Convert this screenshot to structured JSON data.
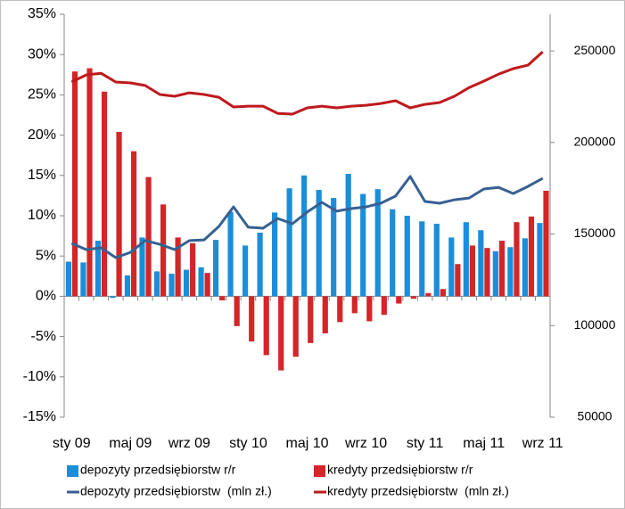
{
  "chart_data": {
    "type": "bar-line",
    "categories": [
      "sty 09",
      null,
      null,
      null,
      "maj 09",
      null,
      null,
      null,
      "wrz 09",
      null,
      null,
      null,
      "sty 10",
      null,
      null,
      null,
      "maj 10",
      null,
      null,
      null,
      "wrz 10",
      null,
      null,
      null,
      "sty 11",
      null,
      null,
      null,
      "maj 11",
      null,
      null,
      null,
      "wrz 11"
    ],
    "ylim": [
      -15,
      35
    ],
    "yticks": [
      {
        "value": -15,
        "label": "-15%"
      },
      {
        "value": -10,
        "label": "-10%"
      },
      {
        "value": -5,
        "label": "-5%"
      },
      {
        "value": 0,
        "label": "0%"
      },
      {
        "value": 5,
        "label": "5%"
      },
      {
        "value": 10,
        "label": "10%"
      },
      {
        "value": 15,
        "label": "15%"
      },
      {
        "value": 20,
        "label": "20%"
      },
      {
        "value": 25,
        "label": "25%"
      },
      {
        "value": 30,
        "label": "30%"
      },
      {
        "value": 35,
        "label": "35%"
      }
    ],
    "y2lim": [
      50000,
      270000
    ],
    "y2ticks": [
      50000,
      100000,
      150000,
      200000,
      250000
    ],
    "grid": false,
    "legend": "bottom",
    "series": [
      {
        "name": "depozyty przedsiębiorstw r/r",
        "kind": "bar",
        "color": "#1b8ed9",
        "values": [
          4.3,
          4.2,
          6.9,
          -0.2,
          2.6,
          7.3,
          3.1,
          2.8,
          3.3,
          3.6,
          7.0,
          10.5,
          6.3,
          7.9,
          10.4,
          13.4,
          15.0,
          13.2,
          12.2,
          15.2,
          12.7,
          13.3,
          10.8,
          10.0,
          9.3,
          9.0,
          7.3,
          9.2,
          8.2,
          5.6,
          6.1,
          7.2,
          9.1
        ]
      },
      {
        "name": "kredyty przedsiębiorstw r/r",
        "kind": "bar",
        "color": "#d42528",
        "values": [
          27.9,
          28.3,
          25.4,
          20.4,
          18.0,
          14.8,
          11.4,
          7.3,
          6.6,
          2.9,
          -0.5,
          -3.7,
          -5.6,
          -7.3,
          -9.2,
          -7.5,
          -5.8,
          -4.6,
          -3.2,
          -2.1,
          -3.1,
          -2.3,
          -0.9,
          -0.3,
          0.4,
          0.9,
          4.0,
          6.3,
          6.0,
          6.9,
          9.2,
          9.9,
          13.1
        ]
      },
      {
        "name": "depozyty przedsiębiorstw  (mln zł.)",
        "kind": "line",
        "axis": "y2",
        "color": "#376092",
        "values": [
          144900,
          141500,
          142500,
          137100,
          140000,
          146400,
          144400,
          141500,
          146400,
          146800,
          154100,
          164800,
          153700,
          153200,
          158500,
          155600,
          162000,
          167300,
          162500,
          163900,
          164800,
          166800,
          170700,
          181400,
          167800,
          166800,
          168700,
          169700,
          174600,
          175500,
          172100,
          176000,
          180400
        ]
      },
      {
        "name": "kredyty przedsiębiorstw  (mln zł.)",
        "kind": "line",
        "axis": "y2",
        "color": "#be1a1d",
        "values": [
          233000,
          236900,
          237800,
          233000,
          232500,
          231100,
          226200,
          225200,
          227100,
          226200,
          224700,
          219400,
          219800,
          219800,
          215900,
          215500,
          218900,
          219800,
          218900,
          219800,
          220300,
          221300,
          222800,
          218900,
          220800,
          221800,
          225200,
          230000,
          233500,
          237300,
          240300,
          242200,
          249500
        ]
      }
    ]
  }
}
